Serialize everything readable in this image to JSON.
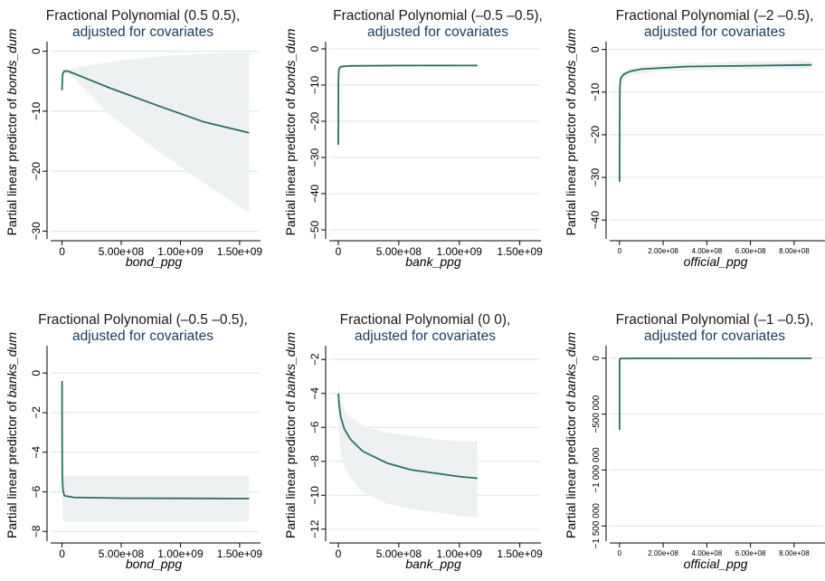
{
  "chart_data": [
    {
      "type": "line",
      "title": "Fractional Polynomial (0.5 0.5),",
      "subtitle": "adjusted for covariates",
      "xlabel": "bond_ppg",
      "ylabel_prefix": "Partial linear predictor of ",
      "ylabel_var": "bonds_dum",
      "xlim": [
        -50000000,
        1600000000
      ],
      "ylim": [
        -31,
        1
      ],
      "xticks": [
        0,
        500000000,
        1000000000,
        1500000000
      ],
      "xtick_labels": [
        "0",
        "5.00e+08",
        "1.00e+09",
        "1.50e+09"
      ],
      "yticks": [
        0,
        -10,
        -20,
        -30
      ],
      "ytick_labels": [
        "0",
        "-10",
        "-20",
        "-30"
      ],
      "grid": true,
      "series": [
        {
          "role": "fit",
          "x": [
            0,
            5000000,
            20000000,
            40000000,
            60000000,
            100000000,
            200000000,
            400000000,
            800000000,
            1200000000,
            1580000000
          ],
          "y": [
            -6.5,
            -3.8,
            -3.3,
            -3.3,
            -3.4,
            -3.7,
            -4.5,
            -6.1,
            -9.0,
            -11.8,
            -13.6
          ]
        },
        {
          "role": "ci",
          "x": [
            0,
            5000000,
            20000000,
            40000000,
            60000000,
            100000000,
            200000000,
            400000000,
            800000000,
            1200000000,
            1580000000
          ],
          "lower": [
            -6.8,
            -4.3,
            -3.6,
            -3.6,
            -3.8,
            -4.4,
            -6.5,
            -10.5,
            -16.5,
            -22.0,
            -27.0
          ],
          "upper": [
            -6.2,
            -3.3,
            -3.0,
            -3.0,
            -3.0,
            -2.9,
            -2.4,
            -1.8,
            -0.9,
            -0.4,
            -0.2
          ]
        }
      ]
    },
    {
      "type": "line",
      "title": "Fractional Polynomial (–0.5 –0.5),",
      "subtitle": "adjusted for covariates",
      "xlabel": "bank_ppg",
      "ylabel_prefix": "Partial linear predictor of ",
      "ylabel_var": "bonds_dum",
      "xlim": [
        -30000000,
        1600000000
      ],
      "ylim": [
        -52,
        1
      ],
      "xticks": [
        0,
        500000000,
        1000000000,
        1500000000
      ],
      "xtick_labels": [
        "0",
        "5.00e+08",
        "1.00e+09",
        "1.50e+09"
      ],
      "yticks": [
        0,
        -10,
        -20,
        -30,
        -40,
        -50
      ],
      "ytick_labels": [
        "0",
        "-10",
        "-20",
        "-30",
        "-40",
        "-50"
      ],
      "grid": true,
      "series": [
        {
          "role": "fit",
          "x": [
            200000,
            500000,
            1000000,
            2000000,
            4000000,
            8000000,
            20000000,
            100000000,
            500000000,
            1150000000
          ],
          "y": [
            -26.5,
            -14.0,
            -9.5,
            -7.2,
            -6.0,
            -5.3,
            -4.9,
            -4.7,
            -4.6,
            -4.6
          ]
        },
        {
          "role": "ci",
          "x": [
            200000,
            1000000,
            5000000,
            20000000,
            100000000,
            1150000000
          ],
          "lower": [
            -49.0,
            -13.0,
            -6.5,
            -5.4,
            -5.0,
            -4.9
          ],
          "upper": [
            -27.0,
            -7.0,
            -4.9,
            -4.5,
            -4.4,
            -4.3
          ]
        }
      ]
    },
    {
      "type": "line",
      "title": "Fractional Polynomial (–2 –0.5),",
      "subtitle": "adjusted for covariates",
      "xlabel": "official_ppg",
      "ylabel_prefix": "Partial linear predictor of ",
      "ylabel_var": "bonds_dum",
      "xlim": [
        -20000000,
        900000000
      ],
      "ylim": [
        -44,
        1
      ],
      "xticks": [
        0,
        200000000,
        400000000,
        600000000,
        800000000
      ],
      "xtick_labels": [
        "0",
        "2.00e+08",
        "4.00e+08",
        "6.00e+08",
        "8.00e+08"
      ],
      "yticks": [
        0,
        -10,
        -20,
        -30,
        -40
      ],
      "ytick_labels": [
        "0",
        "-10",
        "-20",
        "-30",
        "-40"
      ],
      "grid": true,
      "series": [
        {
          "role": "fit",
          "x": [
            500000,
            1000000,
            2000000,
            5000000,
            10000000,
            20000000,
            50000000,
            100000000,
            300000000,
            600000000,
            880000000
          ],
          "y": [
            -31.0,
            -12.0,
            -8.5,
            -7.0,
            -6.4,
            -5.8,
            -5.1,
            -4.6,
            -4.0,
            -3.8,
            -3.6
          ]
        },
        {
          "role": "ci",
          "x": [
            500000,
            2000000,
            10000000,
            50000000,
            200000000,
            500000000,
            880000000
          ],
          "lower": [
            -40.0,
            -10.5,
            -7.5,
            -6.0,
            -5.0,
            -4.7,
            -4.5
          ],
          "upper": [
            -2.0,
            -6.5,
            -5.5,
            -4.3,
            -3.4,
            -2.9,
            -2.7
          ]
        }
      ]
    },
    {
      "type": "line",
      "title": "Fractional Polynomial (–0.5 –0.5),",
      "subtitle": "adjusted for covariates",
      "xlabel": "bond_ppg",
      "ylabel_prefix": "Partial linear predictor of ",
      "ylabel_var": "banks_dum",
      "xlim": [
        -50000000,
        1600000000
      ],
      "ylim": [
        -8.4,
        1.2
      ],
      "xticks": [
        0,
        500000000,
        1000000000,
        1500000000
      ],
      "xtick_labels": [
        "0",
        "5.00e+08",
        "1.00e+09",
        "1.50e+09"
      ],
      "yticks": [
        0,
        -2,
        -4,
        -6,
        -8
      ],
      "ytick_labels": [
        "0",
        "-2",
        "-4",
        "-6",
        "-8"
      ],
      "grid": true,
      "series": [
        {
          "role": "fit",
          "x": [
            300000,
            1000000,
            3000000,
            8000000,
            20000000,
            100000000,
            500000000,
            1000000000,
            1580000000
          ],
          "y": [
            -0.4,
            -3.6,
            -5.3,
            -5.9,
            -6.2,
            -6.28,
            -6.32,
            -6.33,
            -6.34
          ]
        },
        {
          "role": "ci",
          "x": [
            300000,
            5000000,
            30000000,
            1580000000
          ],
          "lower": [
            -3.0,
            -7.4,
            -7.5,
            -7.5
          ],
          "upper": [
            0.8,
            -5.2,
            -5.2,
            -5.2
          ]
        }
      ]
    },
    {
      "type": "line",
      "title": "Fractional Polynomial (0 0),",
      "subtitle": "adjusted for covariates",
      "xlabel": "bank_ppg",
      "ylabel_prefix": "Partial linear predictor of ",
      "ylabel_var": "banks_dum",
      "xlim": [
        -30000000,
        1600000000
      ],
      "ylim": [
        -12.6,
        -1.4
      ],
      "xticks": [
        0,
        500000000,
        1000000000,
        1500000000
      ],
      "xtick_labels": [
        "0",
        "5.00e+08",
        "1.00e+09",
        "1.50e+09"
      ],
      "yticks": [
        -2,
        -4,
        -6,
        -8,
        -10,
        -12
      ],
      "ytick_labels": [
        "-2",
        "-4",
        "-6",
        "-8",
        "-10",
        "-12"
      ],
      "grid": true,
      "series": [
        {
          "role": "fit",
          "x": [
            1000000,
            5000000,
            20000000,
            50000000,
            100000000,
            200000000,
            400000000,
            600000000,
            800000000,
            1000000000,
            1150000000
          ],
          "y": [
            -4.0,
            -4.6,
            -5.4,
            -6.1,
            -6.7,
            -7.4,
            -8.1,
            -8.5,
            -8.7,
            -8.9,
            -9.0
          ]
        },
        {
          "role": "ci",
          "x": [
            1000000,
            5000000,
            20000000,
            50000000,
            100000000,
            200000000,
            400000000,
            600000000,
            800000000,
            1000000000,
            1150000000
          ],
          "lower": [
            -5.0,
            -6.2,
            -7.4,
            -8.3,
            -9.0,
            -9.8,
            -10.5,
            -10.8,
            -11.0,
            -11.2,
            -11.3
          ],
          "upper": [
            -3.0,
            -3.6,
            -4.4,
            -5.0,
            -5.4,
            -5.9,
            -6.3,
            -6.5,
            -6.7,
            -6.8,
            -6.8
          ]
        }
      ]
    },
    {
      "type": "line",
      "title": "Fractional Polynomial (–1 –0.5),",
      "subtitle": "adjusted for covariates",
      "xlabel": "official_ppg",
      "ylabel_prefix": "Partial linear predictor of ",
      "ylabel_var": "banks_dum",
      "xlim": [
        -20000000,
        900000000
      ],
      "ylim": [
        -1620000,
        80000
      ],
      "xticks": [
        0,
        200000000,
        400000000,
        600000000,
        800000000
      ],
      "xtick_labels": [
        "0",
        "2.00e+08",
        "4.00e+08",
        "6.00e+08",
        "8.00e+08"
      ],
      "yticks": [
        0,
        -500000,
        -1000000,
        -1500000
      ],
      "ytick_labels": [
        "0",
        "-500 000",
        "-1 000 000",
        "-1 500 000"
      ],
      "grid": true,
      "series": [
        {
          "role": "fit",
          "x": [
            300000,
            400000,
            500000,
            1000000,
            5000000,
            100000000,
            880000000
          ],
          "y": [
            -640000,
            -300000,
            -60000,
            -8000,
            -1500,
            -200,
            0
          ]
        },
        {
          "role": "ci",
          "x": [
            300000,
            500000,
            1000000,
            880000000
          ],
          "lower": [
            -1290000,
            -120000,
            -15000,
            -500
          ],
          "upper": [
            -10000,
            -5000,
            -1000,
            500
          ]
        }
      ]
    }
  ],
  "colors": {
    "line": "#2a6f63",
    "band": "#eef1f2",
    "grid": "#dfe9ea",
    "title": "#1a1a1a",
    "subtitle": "#1a3b5c",
    "axis": "#000000"
  }
}
